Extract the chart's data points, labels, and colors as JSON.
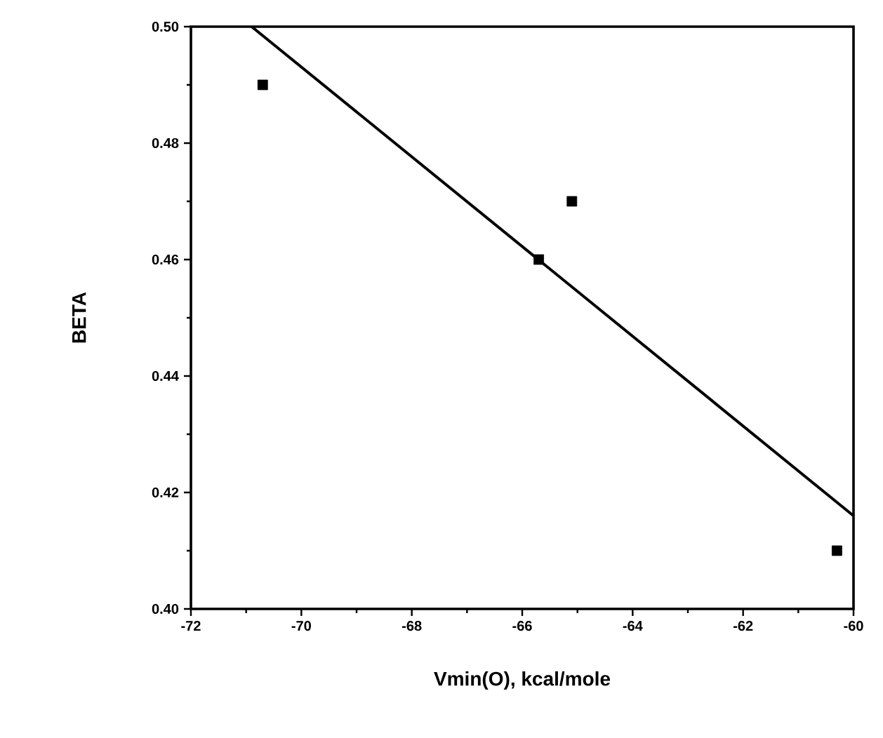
{
  "chart_data": {
    "type": "scatter",
    "xlabel": "Vmin(O), kcal/mole",
    "ylabel": "BETA",
    "xlim": [
      -72,
      -60
    ],
    "ylim": [
      0.4,
      0.5
    ],
    "xticks": [
      -72,
      -70,
      -68,
      -66,
      -64,
      -62,
      -60
    ],
    "yticks": [
      {
        "value": 0.4,
        "label": "0.40"
      },
      {
        "value": 0.42,
        "label": "0.42"
      },
      {
        "value": 0.44,
        "label": "0.44"
      },
      {
        "value": 0.46,
        "label": "0.46"
      },
      {
        "value": 0.48,
        "label": "0.48"
      },
      {
        "value": 0.5,
        "label": "0.50"
      }
    ],
    "grid": false,
    "series": [
      {
        "marker": "square",
        "color": "#000000",
        "x": [
          -70.7,
          -65.7,
          -65.1,
          -60.3
        ],
        "values": [
          0.49,
          0.46,
          0.47,
          0.41
        ]
      },
      {
        "type": "line",
        "marker": "none",
        "line_style": "solid",
        "color": "#000000",
        "x": [
          -70.9,
          -60
        ],
        "values": [
          0.5,
          0.416
        ]
      }
    ]
  }
}
